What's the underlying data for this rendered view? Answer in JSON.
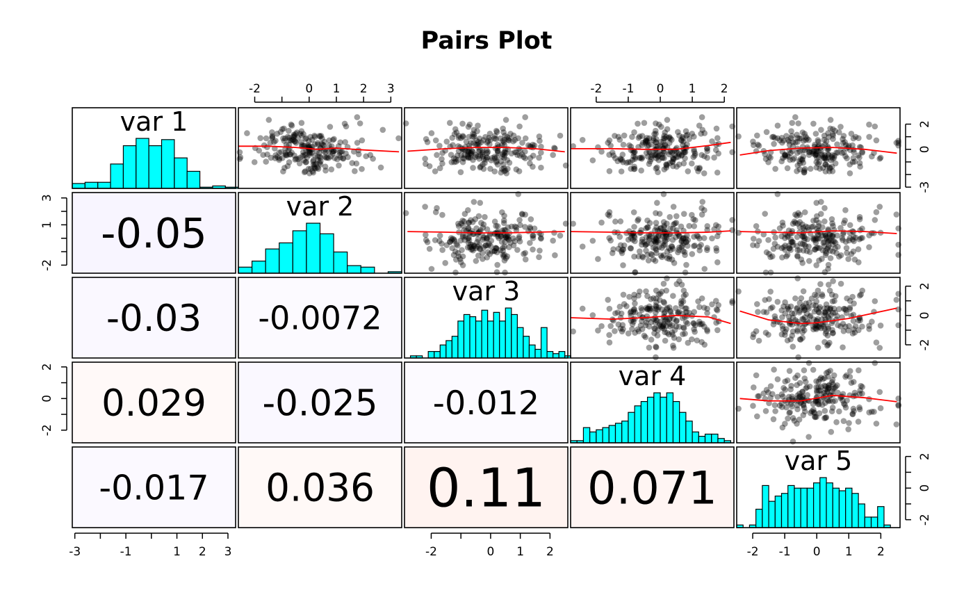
{
  "title": "Pairs Plot",
  "colors": {
    "hist_fill": "#00FFFF",
    "point": "#000000",
    "smooth": "#FF0000",
    "panel_border": "#000000",
    "corr_negative": "#F5F0FF",
    "corr_positive": "#FFF3F0"
  },
  "chart_data": {
    "type": "scatter",
    "variables": [
      "var 1",
      "var 2",
      "var 3",
      "var 4",
      "var 5"
    ],
    "diagonal": "histogram",
    "upper": "scatter with red smoothed trend line",
    "lower": "correlation coefficient, text size and background tint proportional to magnitude",
    "correlations": [
      {
        "row": 2,
        "col": 1,
        "value": -0.05,
        "label": "-0.05"
      },
      {
        "row": 3,
        "col": 1,
        "value": -0.03,
        "label": "-0.03"
      },
      {
        "row": 3,
        "col": 2,
        "value": -0.0072,
        "label": "-0.0072"
      },
      {
        "row": 4,
        "col": 1,
        "value": 0.029,
        "label": "0.029"
      },
      {
        "row": 4,
        "col": 2,
        "value": -0.025,
        "label": "-0.025"
      },
      {
        "row": 4,
        "col": 3,
        "value": -0.012,
        "label": "-0.012"
      },
      {
        "row": 5,
        "col": 1,
        "value": -0.017,
        "label": "-0.017"
      },
      {
        "row": 5,
        "col": 2,
        "value": 0.036,
        "label": "0.036"
      },
      {
        "row": 5,
        "col": 3,
        "value": 0.11,
        "label": "0.11"
      },
      {
        "row": 5,
        "col": 4,
        "value": 0.071,
        "label": "0.071"
      }
    ],
    "axis_ranges": {
      "var 1": [
        -3.1,
        3.3
      ],
      "var 2": [
        -2.6,
        3.4
      ],
      "var 3": [
        -2.9,
        2.6
      ],
      "var 4": [
        -2.8,
        2.3
      ],
      "var 5": [
        -2.5,
        2.6
      ]
    },
    "ticks": {
      "var 1": {
        "values": [
          -3,
          -2,
          -1,
          0,
          1,
          2,
          3
        ],
        "labels": [
          "-3",
          "",
          "-1",
          "",
          "1",
          "2",
          "3"
        ]
      },
      "var 2": {
        "values": [
          -2,
          -1,
          0,
          1,
          2,
          3
        ],
        "labels": [
          "-2",
          "",
          "0",
          "1",
          "2",
          "3"
        ]
      },
      "var 3": {
        "values": [
          -2,
          -1,
          0,
          1,
          2
        ],
        "labels": [
          "-2",
          "",
          "0",
          "1",
          "2"
        ]
      },
      "var 4": {
        "values": [
          -2,
          -1,
          0,
          1,
          2
        ],
        "labels": [
          "-2",
          "-1",
          "0",
          "1",
          "2"
        ]
      },
      "var 5": {
        "values": [
          -2,
          -1,
          0,
          1,
          2
        ],
        "labels": [
          "-2",
          "-1",
          "0",
          "1",
          "2"
        ]
      }
    },
    "y_ticks": {
      "var 1": {
        "values": [
          -3,
          -2,
          -1,
          0,
          1,
          2
        ],
        "labels": [
          "-3",
          "",
          "",
          "0",
          "",
          "2"
        ]
      },
      "var 2": {
        "values": [
          -2,
          -1,
          0,
          1,
          2,
          3
        ],
        "labels": [
          "-2",
          "",
          "",
          "1",
          "",
          "3"
        ]
      },
      "var 3": {
        "values": [
          -2,
          -1,
          0,
          1,
          2
        ],
        "labels": [
          "-2",
          "",
          "0",
          "",
          "2"
        ]
      },
      "var 4": {
        "values": [
          -2,
          -1,
          0,
          1,
          2
        ],
        "labels": [
          "-2",
          "",
          "0",
          "",
          "2"
        ]
      },
      "var 5": {
        "values": [
          -2,
          -1,
          0,
          1,
          2
        ],
        "labels": [
          "-2",
          "",
          "0",
          "",
          "2"
        ]
      }
    },
    "histograms": [
      {
        "var": "var 1",
        "bin_start": -3.1,
        "bin_width": 0.5,
        "counts": [
          4,
          5,
          5,
          20,
          35,
          41,
          35,
          40,
          25,
          14,
          1,
          2,
          1
        ]
      },
      {
        "var": "var 2",
        "bin_start": -2.6,
        "bin_width": 0.5,
        "counts": [
          4,
          8,
          16,
          20,
          28,
          33,
          26,
          14,
          5,
          4,
          0,
          1
        ]
      },
      {
        "var": "var 3",
        "bin_start": -2.9,
        "bin_width": 0.2,
        "counts": [
          0,
          1,
          1,
          0,
          3,
          3,
          6,
          8,
          10,
          17,
          20,
          19,
          17,
          22,
          17,
          21,
          17,
          23,
          20,
          14,
          10,
          6,
          4,
          14,
          3,
          2,
          3,
          1
        ]
      },
      {
        "var": "var 4",
        "bin_start": -2.8,
        "bin_width": 0.2,
        "counts": [
          1,
          1,
          7,
          5,
          6,
          7,
          8,
          9,
          10,
          14,
          17,
          19,
          21,
          23,
          21,
          23,
          19,
          14,
          10,
          5,
          3,
          4,
          4,
          2,
          1
        ]
      },
      {
        "var": "var 5",
        "bin_start": -2.5,
        "bin_width": 0.2,
        "counts": [
          1,
          0,
          1,
          7,
          16,
          10,
          12,
          13,
          16,
          15,
          15,
          15,
          17,
          19,
          17,
          15,
          14,
          15,
          13,
          9,
          4,
          4,
          8,
          1
        ]
      }
    ],
    "smooth_lines": [
      {
        "x": "var 2",
        "y": "var 1",
        "x_values": [
          -2.6,
          -1.5,
          -0.5,
          0.3,
          1.0,
          2.0,
          3.3
        ],
        "y_values": [
          0.25,
          0.25,
          0.15,
          0.0,
          0.1,
          -0.05,
          -0.2
        ]
      },
      {
        "x": "var 3",
        "y": "var 1",
        "x_values": [
          -2.8,
          -1.5,
          -0.5,
          0.5,
          1.5,
          2.5
        ],
        "y_values": [
          -0.15,
          0.05,
          0.15,
          0.15,
          0.05,
          -0.2
        ]
      },
      {
        "x": "var 4",
        "y": "var 1",
        "x_values": [
          -2.8,
          -1.5,
          -0.5,
          0.5,
          1.5,
          2.2
        ],
        "y_values": [
          0.05,
          0.05,
          0.0,
          0.0,
          0.3,
          0.55
        ]
      },
      {
        "x": "var 5",
        "y": "var 1",
        "x_values": [
          -2.4,
          -1.5,
          -0.5,
          0.5,
          1.5,
          2.5
        ],
        "y_values": [
          -0.45,
          -0.1,
          0.1,
          0.15,
          0.0,
          -0.3
        ]
      },
      {
        "x": "var 3",
        "y": "var 2",
        "x_values": [
          -2.8,
          -1.5,
          -0.5,
          0.5,
          1.5,
          2.5
        ],
        "y_values": [
          0.5,
          0.45,
          0.4,
          0.4,
          0.45,
          0.5
        ]
      },
      {
        "x": "var 4",
        "y": "var 2",
        "x_values": [
          -2.8,
          -1.5,
          -0.5,
          0.5,
          1.5,
          2.2
        ],
        "y_values": [
          0.5,
          0.45,
          0.4,
          0.4,
          0.45,
          0.55
        ]
      },
      {
        "x": "var 5",
        "y": "var 2",
        "x_values": [
          -2.4,
          -1.5,
          -0.5,
          0.5,
          1.5,
          2.5
        ],
        "y_values": [
          0.5,
          0.45,
          0.4,
          0.55,
          0.5,
          0.35
        ]
      },
      {
        "x": "var 4",
        "y": "var 3",
        "x_values": [
          -2.8,
          -1.5,
          -0.5,
          0.5,
          1.5,
          2.2
        ],
        "y_values": [
          -0.15,
          -0.25,
          -0.15,
          0.0,
          -0.1,
          -0.55
        ]
      },
      {
        "x": "var 5",
        "y": "var 3",
        "x_values": [
          -2.4,
          -1.5,
          -0.5,
          0.0,
          1.0,
          2.5
        ],
        "y_values": [
          0.3,
          -0.3,
          -0.55,
          -0.5,
          -0.2,
          0.5
        ]
      },
      {
        "x": "var 5",
        "y": "var 4",
        "x_values": [
          -2.4,
          -1.5,
          -0.5,
          0.5,
          1.5,
          2.5
        ],
        "y_values": [
          0.0,
          -0.15,
          -0.15,
          0.2,
          0.05,
          -0.2
        ]
      }
    ],
    "n_points": 220,
    "grid": false,
    "legend": "none"
  }
}
